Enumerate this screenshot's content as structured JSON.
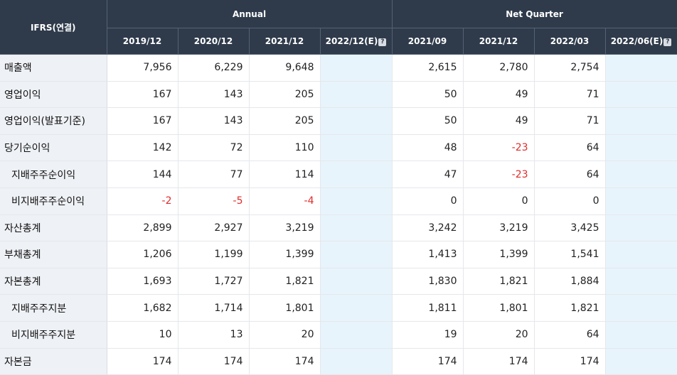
{
  "header": {
    "corner": "IFRS(연결)",
    "group_annual": "Annual",
    "group_quarter": "Net Quarter",
    "annual_cols": [
      {
        "label": "2019/12",
        "estimate": false
      },
      {
        "label": "2020/12",
        "estimate": false
      },
      {
        "label": "2021/12",
        "estimate": false
      },
      {
        "label": "2022/12(E)",
        "estimate": true
      }
    ],
    "quarter_cols": [
      {
        "label": "2021/09",
        "estimate": false
      },
      {
        "label": "2021/12",
        "estimate": false
      },
      {
        "label": "2022/03",
        "estimate": false
      },
      {
        "label": "2022/06(E)",
        "estimate": true
      }
    ],
    "help_glyph": "?"
  },
  "rows": [
    {
      "label": "매출액",
      "sub": false,
      "annual": [
        "7,956",
        "6,229",
        "9,648",
        ""
      ],
      "quarter": [
        "2,615",
        "2,780",
        "2,754",
        ""
      ]
    },
    {
      "label": "영업이익",
      "sub": false,
      "annual": [
        "167",
        "143",
        "205",
        ""
      ],
      "quarter": [
        "50",
        "49",
        "71",
        ""
      ]
    },
    {
      "label": "영업이익(발표기준)",
      "sub": false,
      "annual": [
        "167",
        "143",
        "205",
        ""
      ],
      "quarter": [
        "50",
        "49",
        "71",
        ""
      ]
    },
    {
      "label": "당기순이익",
      "sub": false,
      "annual": [
        "142",
        "72",
        "110",
        ""
      ],
      "quarter": [
        "48",
        "-23",
        "64",
        ""
      ]
    },
    {
      "label": "지배주주순이익",
      "sub": true,
      "annual": [
        "144",
        "77",
        "114",
        ""
      ],
      "quarter": [
        "47",
        "-23",
        "64",
        ""
      ]
    },
    {
      "label": "비지배주주순이익",
      "sub": true,
      "annual": [
        "-2",
        "-5",
        "-4",
        ""
      ],
      "quarter": [
        "0",
        "0",
        "0",
        ""
      ]
    },
    {
      "label": "자산총계",
      "sub": false,
      "annual": [
        "2,899",
        "2,927",
        "3,219",
        ""
      ],
      "quarter": [
        "3,242",
        "3,219",
        "3,425",
        ""
      ]
    },
    {
      "label": "부채총계",
      "sub": false,
      "annual": [
        "1,206",
        "1,199",
        "1,399",
        ""
      ],
      "quarter": [
        "1,413",
        "1,399",
        "1,541",
        ""
      ]
    },
    {
      "label": "자본총계",
      "sub": false,
      "annual": [
        "1,693",
        "1,727",
        "1,821",
        ""
      ],
      "quarter": [
        "1,830",
        "1,821",
        "1,884",
        ""
      ]
    },
    {
      "label": "지배주주지분",
      "sub": true,
      "annual": [
        "1,682",
        "1,714",
        "1,801",
        ""
      ],
      "quarter": [
        "1,811",
        "1,801",
        "1,821",
        ""
      ]
    },
    {
      "label": "비지배주주지분",
      "sub": true,
      "annual": [
        "10",
        "13",
        "20",
        ""
      ],
      "quarter": [
        "19",
        "20",
        "64",
        ""
      ]
    },
    {
      "label": "자본금",
      "sub": false,
      "annual": [
        "174",
        "174",
        "174",
        ""
      ],
      "quarter": [
        "174",
        "174",
        "174",
        ""
      ]
    }
  ],
  "colors": {
    "header_bg": "#2f3b4b",
    "negative": "#e12b2b",
    "estimate_bg": "#e8f4fb",
    "label_bg": "#eef1f5"
  }
}
